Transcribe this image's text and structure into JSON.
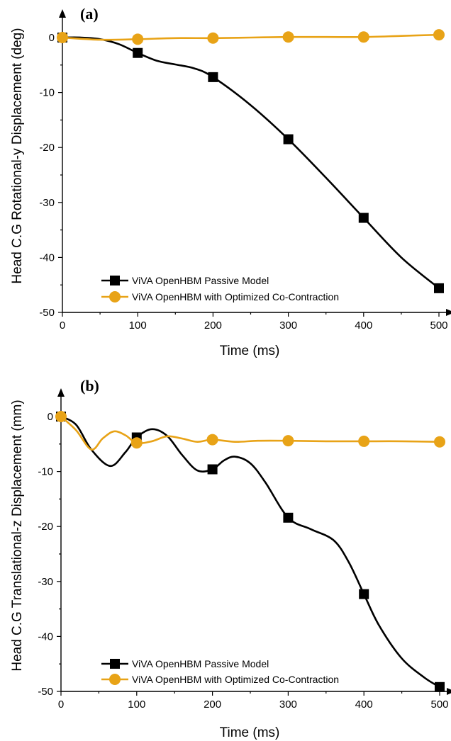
{
  "colors": {
    "passive": "#000000",
    "cocontraction": "#E8A317"
  },
  "chart_data": [
    {
      "panel_label": "(a)",
      "type": "line",
      "xlabel": "Time (ms)",
      "ylabel": "Head C.G Rotational-y Displacement (deg)",
      "xlim": [
        0,
        500
      ],
      "ylim": [
        -50,
        0
      ],
      "x_ticks": [
        "0",
        "100",
        "200",
        "300",
        "400",
        "500"
      ],
      "y_ticks": [
        "0",
        "-10",
        "-20",
        "-30",
        "-40",
        "-50"
      ],
      "grid": false,
      "legend_position": "bottom-left",
      "series": [
        {
          "name": "ViVA OpenHBM Passive Model",
          "color": "#000000",
          "marker": "square",
          "marker_x": [
            0,
            100,
            200,
            300,
            400,
            500
          ],
          "marker_y": [
            0,
            -2.8,
            -7.2,
            -18.5,
            -32.8,
            -45.6
          ],
          "curve": [
            [
              0,
              0
            ],
            [
              25,
              0
            ],
            [
              50,
              -0.3
            ],
            [
              75,
              -1.2
            ],
            [
              100,
              -2.8
            ],
            [
              125,
              -4.2
            ],
            [
              150,
              -4.9
            ],
            [
              175,
              -5.6
            ],
            [
              200,
              -7.2
            ],
            [
              250,
              -12.3
            ],
            [
              300,
              -18.5
            ],
            [
              350,
              -25.5
            ],
            [
              400,
              -32.8
            ],
            [
              450,
              -40.0
            ],
            [
              500,
              -45.6
            ]
          ]
        },
        {
          "name": "ViVA OpenHBM with Optimized Co-Contraction",
          "color": "#E8A317",
          "marker": "circle",
          "marker_x": [
            0,
            100,
            200,
            300,
            400,
            500
          ],
          "marker_y": [
            0,
            -0.3,
            -0.1,
            0.1,
            0.1,
            0.5
          ],
          "curve": [
            [
              0,
              0
            ],
            [
              50,
              -0.4
            ],
            [
              100,
              -0.3
            ],
            [
              150,
              -0.1
            ],
            [
              200,
              -0.1
            ],
            [
              250,
              0
            ],
            [
              300,
              0.1
            ],
            [
              350,
              0.1
            ],
            [
              400,
              0.1
            ],
            [
              450,
              0.3
            ],
            [
              500,
              0.5
            ]
          ]
        }
      ]
    },
    {
      "panel_label": "(b)",
      "type": "line",
      "xlabel": "Time (ms)",
      "ylabel": "Head C.G Translational-z Displacement (mm)",
      "xlim": [
        0,
        500
      ],
      "ylim": [
        -50,
        0
      ],
      "x_ticks": [
        "0",
        "100",
        "200",
        "300",
        "400",
        "500"
      ],
      "y_ticks": [
        "0",
        "-10",
        "-20",
        "-30",
        "-40",
        "-50"
      ],
      "grid": false,
      "legend_position": "bottom-left",
      "series": [
        {
          "name": "ViVA OpenHBM Passive Model",
          "color": "#000000",
          "marker": "square",
          "marker_x": [
            0,
            100,
            200,
            300,
            400,
            500
          ],
          "marker_y": [
            0,
            -3.8,
            -9.6,
            -18.4,
            -32.3,
            -49.2
          ],
          "curve": [
            [
              0,
              0
            ],
            [
              20,
              -1.5
            ],
            [
              40,
              -6
            ],
            [
              65,
              -9
            ],
            [
              85,
              -6.5
            ],
            [
              100,
              -3.8
            ],
            [
              120,
              -2.3
            ],
            [
              140,
              -3.5
            ],
            [
              160,
              -7
            ],
            [
              180,
              -9.8
            ],
            [
              200,
              -9.6
            ],
            [
              215,
              -8
            ],
            [
              230,
              -7.3
            ],
            [
              250,
              -8.5
            ],
            [
              270,
              -12
            ],
            [
              300,
              -18.4
            ],
            [
              330,
              -20.5
            ],
            [
              360,
              -22.5
            ],
            [
              380,
              -26.5
            ],
            [
              400,
              -32.3
            ],
            [
              420,
              -38
            ],
            [
              450,
              -44
            ],
            [
              480,
              -47.5
            ],
            [
              500,
              -49.2
            ]
          ]
        },
        {
          "name": "ViVA OpenHBM with Optimized Co-Contraction",
          "color": "#E8A317",
          "marker": "circle",
          "marker_x": [
            0,
            100,
            200,
            300,
            400,
            500
          ],
          "marker_y": [
            0,
            -4.8,
            -4.2,
            -4.4,
            -4.5,
            -4.6
          ],
          "curve": [
            [
              0,
              0
            ],
            [
              20,
              -2.5
            ],
            [
              40,
              -6
            ],
            [
              55,
              -4
            ],
            [
              70,
              -2.7
            ],
            [
              85,
              -3.4
            ],
            [
              100,
              -4.8
            ],
            [
              120,
              -4.5
            ],
            [
              140,
              -3.6
            ],
            [
              160,
              -4
            ],
            [
              180,
              -4.6
            ],
            [
              200,
              -4.2
            ],
            [
              230,
              -4.6
            ],
            [
              260,
              -4.4
            ],
            [
              300,
              -4.4
            ],
            [
              350,
              -4.5
            ],
            [
              400,
              -4.5
            ],
            [
              450,
              -4.5
            ],
            [
              500,
              -4.6
            ]
          ]
        }
      ]
    }
  ]
}
